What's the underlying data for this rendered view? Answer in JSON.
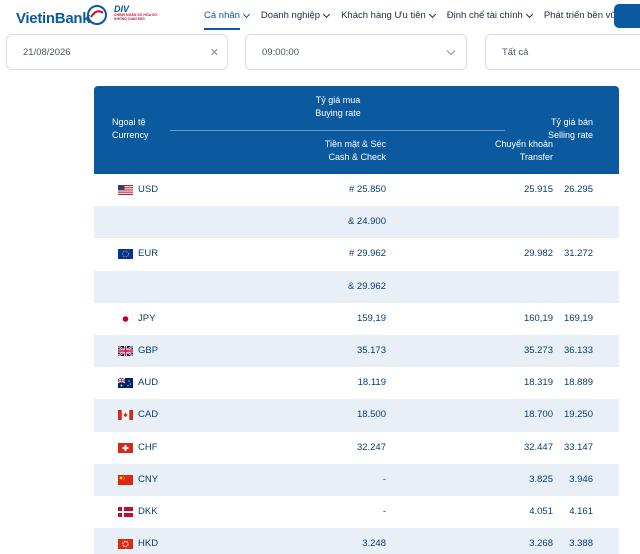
{
  "brand": {
    "name_part1": "Vietin",
    "name_part2": "Bank",
    "badge": "DIV",
    "badge_sub": "CHÍNH NGÂN SỐ HÓA SỐ KHÔNG GIAN MỚI"
  },
  "nav": {
    "items": [
      {
        "label": "Cá nhân"
      },
      {
        "label": "Doanh nghiệp"
      },
      {
        "label": "Khách hàng Ưu tiên"
      },
      {
        "label": "Định chế tài chính"
      },
      {
        "label": "Phát triển bền vững"
      }
    ]
  },
  "filters": {
    "date": "21/08/2026",
    "time": "09:00:00",
    "currency": "Tất cả"
  },
  "table": {
    "col_currency": "Ngoại tệ",
    "col_currency_en": "Currency",
    "col_buy": "Tỷ giá mua",
    "col_buy_en": "Buying rate",
    "col_cash": "Tiền mặt & Séc",
    "col_cash_en": "Cash & Check",
    "col_transfer": "Chuyển khoản",
    "col_transfer_en": "Transfer",
    "col_sell": "Tỷ giá bán",
    "col_sell_en": "Selling rate",
    "rows": [
      {
        "code": "USD",
        "flag": "us-flag-icon",
        "cash": "# 25.850",
        "transfer": "25.915",
        "sell": "26.295"
      },
      {
        "code": "",
        "flag": "",
        "cash": "& 24.900",
        "transfer": "",
        "sell": ""
      },
      {
        "code": "EUR",
        "flag": "eu-flag-icon",
        "cash": "# 29.962",
        "transfer": "29.982",
        "sell": "31.272"
      },
      {
        "code": "",
        "flag": "",
        "cash": "& 29.962",
        "transfer": "",
        "sell": ""
      },
      {
        "code": "JPY",
        "flag": "jp-flag-icon",
        "cash": "159,19",
        "transfer": "160,19",
        "sell": "169,19"
      },
      {
        "code": "GBP",
        "flag": "gb-flag-icon",
        "cash": "35.173",
        "transfer": "35.273",
        "sell": "36.133"
      },
      {
        "code": "AUD",
        "flag": "au-flag-icon",
        "cash": "18.119",
        "transfer": "18.319",
        "sell": "18.889"
      },
      {
        "code": "CAD",
        "flag": "ca-flag-icon",
        "cash": "18.500",
        "transfer": "18.700",
        "sell": "19.250"
      },
      {
        "code": "CHF",
        "flag": "ch-flag-icon",
        "cash": "32.247",
        "transfer": "32.447",
        "sell": "33.147"
      },
      {
        "code": "CNY",
        "flag": "cn-flag-icon",
        "cash": "-",
        "transfer": "3.825",
        "sell": "3.946"
      },
      {
        "code": "DKK",
        "flag": "dk-flag-icon",
        "cash": "-",
        "transfer": "4.051",
        "sell": "4.161"
      },
      {
        "code": "HKD",
        "flag": "hk-flag-icon",
        "cash": "3.248",
        "transfer": "3.268",
        "sell": "3.388"
      }
    ]
  },
  "colors": {
    "primary": "#0b5aa0",
    "row_alt": "#e8eff7",
    "text": "#0a3d6b"
  }
}
